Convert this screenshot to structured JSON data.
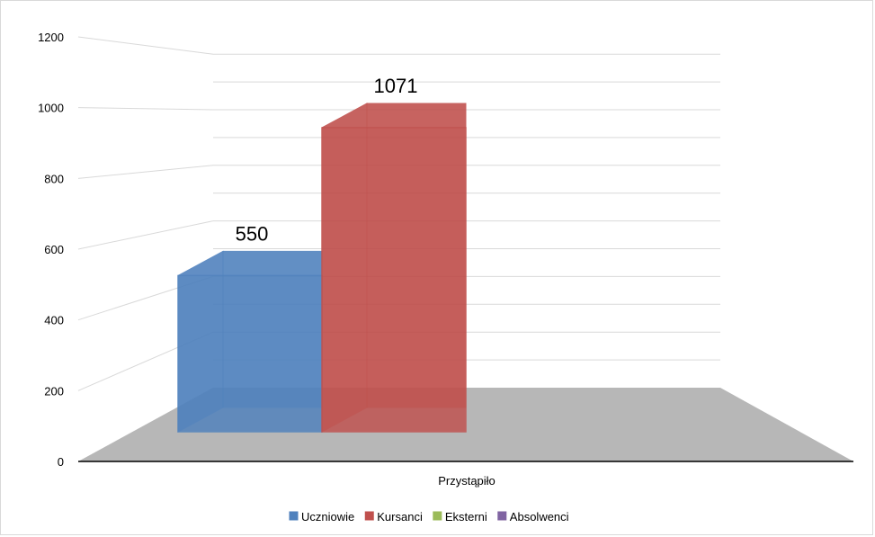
{
  "chart_data": {
    "type": "bar",
    "categories": [
      "Przystąpiło"
    ],
    "series": [
      {
        "name": "Uczniowie",
        "values": [
          550
        ],
        "color": "#4f81bd"
      },
      {
        "name": "Kursanci",
        "values": [
          1071
        ],
        "color": "#c0504d"
      },
      {
        "name": "Eksterni",
        "values": [
          null
        ],
        "color": "#9bbb59"
      },
      {
        "name": "Absolwenci",
        "values": [
          null
        ],
        "color": "#8064a2"
      }
    ],
    "ylim": [
      0,
      1200
    ],
    "yticks": [
      "0",
      "200",
      "400",
      "600",
      "800",
      "1000",
      "1200"
    ],
    "data_labels": [
      "550",
      "1071"
    ],
    "grid": true,
    "three_d": true,
    "legend_position": "bottom",
    "floor_color": "#b7b7b7"
  }
}
